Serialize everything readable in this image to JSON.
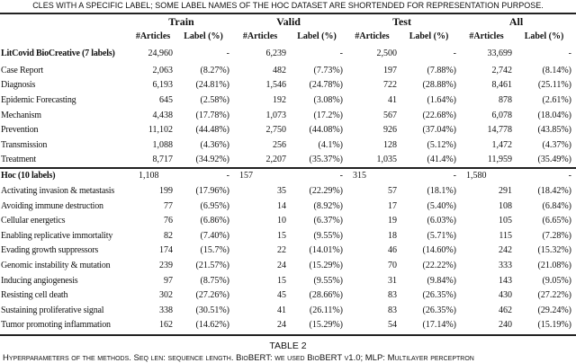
{
  "caption_top": "CLES WITH A SPECIFIC LABEL; SOME LABEL NAMES OF THE HOC DATASET ARE SHORTENDED FOR REPRESENTATION PURPOSE.",
  "header": {
    "groups": [
      "Train",
      "Valid",
      "Test",
      "All"
    ],
    "sub": [
      "#Articles",
      "Label (%)"
    ]
  },
  "litcovid": {
    "title": "LitCovid  BioCreative (7 labels)",
    "totals": [
      "24,960",
      "-",
      "6,239",
      "-",
      "2,500",
      "-",
      "33,699",
      "-"
    ],
    "rows": [
      {
        "label": "Case Report",
        "cells": [
          "2,063",
          "(8.27%)",
          "482",
          "(7.73%)",
          "197",
          "(7.88%)",
          "2,742",
          "(8.14%)"
        ]
      },
      {
        "label": "Diagnosis",
        "cells": [
          "6,193",
          "(24.81%)",
          "1,546",
          "(24.78%)",
          "722",
          "(28.88%)",
          "8,461",
          "(25.11%)"
        ]
      },
      {
        "label": "Epidemic Forecasting",
        "cells": [
          "645",
          "(2.58%)",
          "192",
          "(3.08%)",
          "41",
          "(1.64%)",
          "878",
          "(2.61%)"
        ]
      },
      {
        "label": "Mechanism",
        "cells": [
          "4,438",
          "(17.78%)",
          "1,073",
          "(17.2%)",
          "567",
          "(22.68%)",
          "6,078",
          "(18.04%)"
        ]
      },
      {
        "label": "Prevention",
        "cells": [
          "11,102",
          "(44.48%)",
          "2,750",
          "(44.08%)",
          "926",
          "(37.04%)",
          "14,778",
          "(43.85%)"
        ]
      },
      {
        "label": "Transmission",
        "cells": [
          "1,088",
          "(4.36%)",
          "256",
          "(4.1%)",
          "128",
          "(5.12%)",
          "1,472",
          "(4.37%)"
        ]
      },
      {
        "label": "Treatment",
        "cells": [
          "8,717",
          "(34.92%)",
          "2,207",
          "(35.37%)",
          "1,035",
          "(41.4%)",
          "11,959",
          "(35.49%)"
        ]
      }
    ]
  },
  "hoc": {
    "title": "Hoc (10 labels)",
    "totals": [
      "1,108",
      "-",
      "157",
      "-",
      "315",
      "-",
      "1,580",
      "-"
    ],
    "rows": [
      {
        "label": "Activating invasion & metastasis",
        "cells": [
          "199",
          "(17.96%)",
          "35",
          "(22.29%)",
          "57",
          "(18.1%)",
          "291",
          "(18.42%)"
        ]
      },
      {
        "label": "Avoiding immune destruction",
        "cells": [
          "77",
          "(6.95%)",
          "14",
          "(8.92%)",
          "17",
          "(5.40%)",
          "108",
          "(6.84%)"
        ]
      },
      {
        "label": "Cellular energetics",
        "cells": [
          "76",
          "(6.86%)",
          "10",
          "(6.37%)",
          "19",
          "(6.03%)",
          "105",
          "(6.65%)"
        ]
      },
      {
        "label": "Enabling replicative immortality",
        "cells": [
          "82",
          "(7.40%)",
          "15",
          "(9.55%)",
          "18",
          "(5.71%)",
          "115",
          "(7.28%)"
        ]
      },
      {
        "label": "Evading growth suppressors",
        "cells": [
          "174",
          "(15.7%)",
          "22",
          "(14.01%)",
          "46",
          "(14.60%)",
          "242",
          "(15.32%)"
        ]
      },
      {
        "label": "Genomic instability & mutation",
        "cells": [
          "239",
          "(21.57%)",
          "24",
          "(15.29%)",
          "70",
          "(22.22%)",
          "333",
          "(21.08%)"
        ]
      },
      {
        "label": "Inducing angiogenesis",
        "cells": [
          "97",
          "(8.75%)",
          "15",
          "(9.55%)",
          "31",
          "(9.84%)",
          "143",
          "(9.05%)"
        ]
      },
      {
        "label": "Resisting cell death",
        "cells": [
          "302",
          "(27.26%)",
          "45",
          "(28.66%)",
          "83",
          "(26.35%)",
          "430",
          "(27.22%)"
        ]
      },
      {
        "label": "Sustaining proliferative signal",
        "cells": [
          "338",
          "(30.51%)",
          "41",
          "(26.11%)",
          "83",
          "(26.35%)",
          "462",
          "(29.24%)"
        ]
      },
      {
        "label": "Tumor promoting inflammation",
        "cells": [
          "162",
          "(14.62%)",
          "24",
          "(15.29%)",
          "54",
          "(17.14%)",
          "240",
          "(15.19%)"
        ]
      }
    ]
  },
  "table2_label": "TABLE 2",
  "caption_bottom": "Hyperparameters of the methods. Seq len: sequence length. BioBERT: we used BioBERT v1.0; MLP: Multilayer perceptron"
}
